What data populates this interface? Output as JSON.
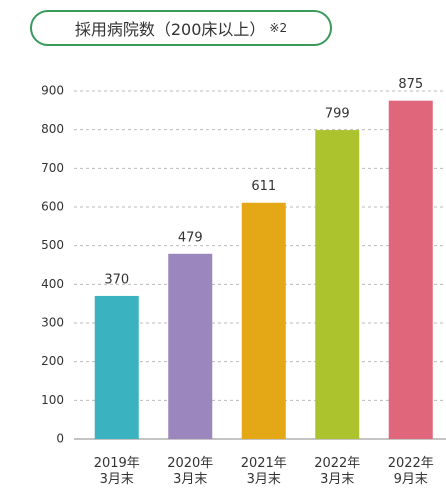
{
  "chart_data": {
    "type": "bar",
    "title": "採用病院数（200床以上）",
    "note": "※2",
    "categories": [
      "2019年\n3月末",
      "2020年\n3月末",
      "2021年\n3月末",
      "2022年\n3月末",
      "2022年\n9月末"
    ],
    "values": [
      370,
      479,
      611,
      799,
      875
    ],
    "colors": [
      "#3bb2bf",
      "#9b87bd",
      "#e4a716",
      "#acc32e",
      "#e0667b"
    ],
    "ylim": [
      0,
      900
    ],
    "yticks": [
      0,
      100,
      200,
      300,
      400,
      500,
      600,
      700,
      800,
      900
    ],
    "grid": true
  }
}
